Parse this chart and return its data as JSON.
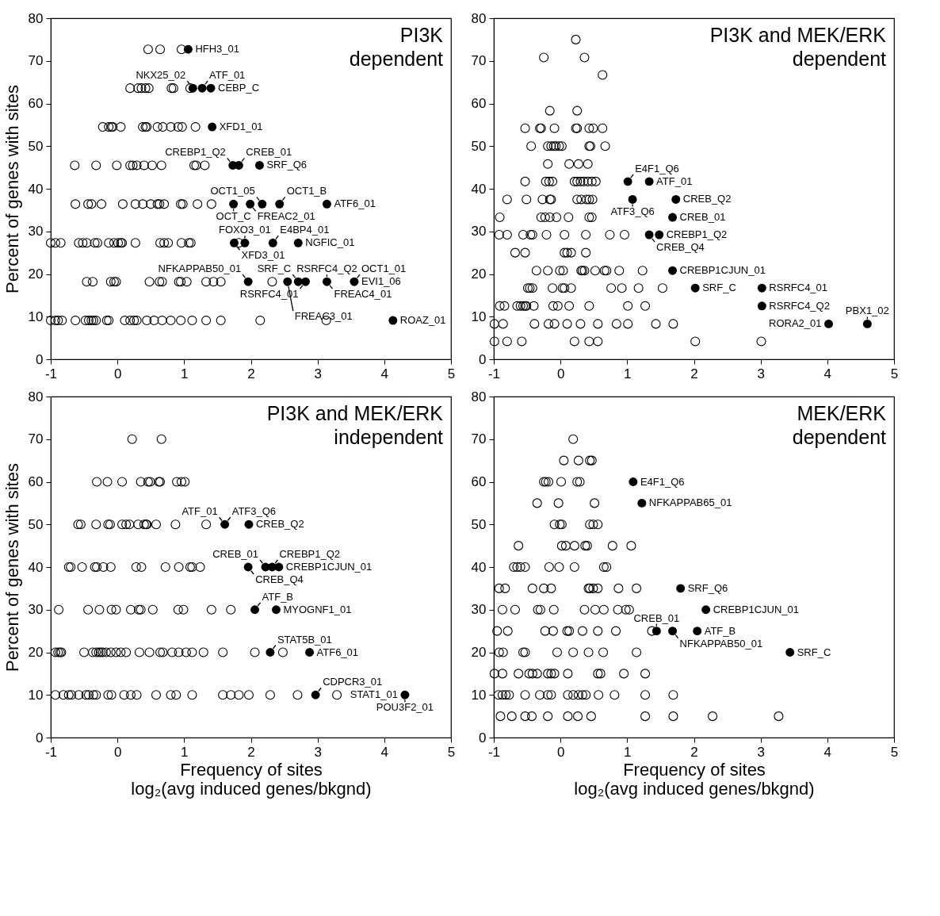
{
  "chart_data": [
    {
      "type": "scatter",
      "title": "PI3K\ndependent",
      "ylabel": "Percent of genes with sites",
      "xlim": [
        -1,
        5
      ],
      "ylim": [
        0,
        80
      ],
      "xticks": [
        -1,
        0,
        1,
        2,
        3,
        4,
        5
      ],
      "yticks": [
        0,
        10,
        20,
        30,
        40,
        50,
        60,
        70,
        80
      ],
      "marker": "circle",
      "series": [
        {
          "color": "#000000",
          "x": [
            0.46,
            0.64,
            0.96,
            0.19,
            0.31,
            0.36,
            0.42,
            0.47,
            0.81,
            0.84,
            1.09,
            -0.22,
            -0.13,
            -0.09,
            -0.07,
            0.05,
            0.38,
            0.42,
            0.44,
            0.6,
            0.68,
            0.8,
            0.91,
            0.97,
            1.17,
            -0.64,
            -0.32,
            -0.01,
            0.19,
            0.23,
            0.29,
            0.4,
            0.52,
            0.66,
            1.15,
            1.18,
            1.31,
            -0.63,
            -0.44,
            -0.39,
            -0.24,
            0.08,
            0.27,
            0.38,
            0.5,
            0.6,
            0.63,
            0.7,
            0.95,
            0.98,
            1.2,
            1.41,
            -1,
            -0.93,
            -0.85,
            -0.58,
            -0.52,
            -0.46,
            -0.34,
            -0.3,
            -0.13,
            -0.05,
            0.01,
            0.05,
            0.07,
            0.27,
            0.64,
            0.7,
            0.76,
            0.96,
            1.07,
            1.1,
            1.82,
            -0.46,
            -0.37,
            -0.1,
            -0.05,
            -0.02,
            0.48,
            0.63,
            0.67,
            0.92,
            0.95,
            1.04,
            1.33,
            1.44,
            1.55,
            2.32,
            -1,
            -0.93,
            -0.89,
            -0.83,
            -0.63,
            -0.48,
            -0.43,
            -0.39,
            -0.36,
            -0.32,
            -0.16,
            -0.13,
            0.11,
            0.19,
            0.25,
            0.29,
            0.44,
            0.55,
            0.67,
            0.8,
            0.95,
            1.12,
            1.33,
            1.55,
            2.14,
            3.13
          ],
          "values": [
            72.7,
            72.7,
            72.7,
            63.6,
            63.6,
            63.6,
            63.6,
            63.6,
            63.6,
            63.6,
            63.6,
            54.5,
            54.5,
            54.5,
            54.5,
            54.5,
            54.5,
            54.5,
            54.5,
            54.5,
            54.5,
            54.5,
            54.5,
            54.5,
            54.5,
            45.5,
            45.5,
            45.5,
            45.5,
            45.5,
            45.5,
            45.5,
            45.5,
            45.5,
            45.5,
            45.5,
            45.5,
            36.4,
            36.4,
            36.4,
            36.4,
            36.4,
            36.4,
            36.4,
            36.4,
            36.4,
            36.4,
            36.4,
            36.4,
            36.4,
            36.4,
            36.4,
            27.3,
            27.3,
            27.3,
            27.3,
            27.3,
            27.3,
            27.3,
            27.3,
            27.3,
            27.3,
            27.3,
            27.3,
            27.3,
            27.3,
            27.3,
            27.3,
            27.3,
            27.3,
            27.3,
            27.3,
            27.3,
            18.2,
            18.2,
            18.2,
            18.2,
            18.2,
            18.2,
            18.2,
            18.2,
            18.2,
            18.2,
            18.2,
            18.2,
            18.2,
            18.2,
            18.2,
            9.1,
            9.1,
            9.1,
            9.1,
            9.1,
            9.1,
            9.1,
            9.1,
            9.1,
            9.1,
            9.1,
            9.1,
            9.1,
            9.1,
            9.1,
            9.1,
            9.1,
            9.1,
            9.1,
            9.1,
            9.1,
            9.1,
            9.1,
            9.1,
            9.1,
            9.1
          ]
        },
        {
          "color": "#000000",
          "x": [
            1.06,
            1.13,
            1.27,
            1.4,
            1.42,
            1.73,
            1.82,
            2.13,
            1.74,
            1.99,
            2.17,
            2.43,
            3.14,
            1.75,
            1.91,
            2.33,
            2.71,
            1.96,
            2.55,
            2.71,
            2.82,
            3.14,
            3.55,
            4.13
          ],
          "values": [
            72.7,
            63.6,
            63.6,
            63.6,
            54.5,
            45.5,
            45.5,
            45.5,
            36.4,
            36.4,
            36.4,
            36.4,
            36.4,
            27.3,
            27.3,
            27.3,
            27.3,
            18.2,
            18.2,
            18.2,
            18.2,
            18.2,
            18.2,
            9.1
          ]
        }
      ],
      "annotations": [
        {
          "text": "HFH3_01",
          "x": 1.06,
          "y": 72.7
        },
        {
          "text": "CEBP_C",
          "x": 1.4,
          "y": 63.6
        },
        {
          "text": "ATF_01",
          "x": 1.27,
          "y": 63.6
        },
        {
          "text": "NKX25_02",
          "x": 1.13,
          "y": 63.6
        },
        {
          "text": "XFD1_01",
          "x": 1.42,
          "y": 54.5
        },
        {
          "text": "SRF_Q6",
          "x": 2.13,
          "y": 45.5
        },
        {
          "text": "CREB_01",
          "x": 1.82,
          "y": 45.5
        },
        {
          "text": "CREBP1_Q2",
          "x": 1.73,
          "y": 45.5
        },
        {
          "text": "ATF6_01",
          "x": 3.14,
          "y": 36.4
        },
        {
          "text": "OCT1_B",
          "x": 2.43,
          "y": 36.4
        },
        {
          "text": "OCT1_05",
          "x": 2.17,
          "y": 36.4
        },
        {
          "text": "FREAC2_01",
          "x": 1.99,
          "y": 36.4
        },
        {
          "text": "OCT_C",
          "x": 1.74,
          "y": 36.4
        },
        {
          "text": "NGFIC_01",
          "x": 2.71,
          "y": 27.3
        },
        {
          "text": "E4BP4_01",
          "x": 2.33,
          "y": 27.3
        },
        {
          "text": "FOXO3_01",
          "x": 1.91,
          "y": 27.3
        },
        {
          "text": "XFD3_01",
          "x": 1.75,
          "y": 27.3
        },
        {
          "text": "EVI1_06",
          "x": 3.55,
          "y": 18.2
        },
        {
          "text": "OCT1_01",
          "x": 3.55,
          "y": 18.2
        },
        {
          "text": "RSRFC4_Q2",
          "x": 3.14,
          "y": 18.2
        },
        {
          "text": "FREAC4_01",
          "x": 3.14,
          "y": 18.2
        },
        {
          "text": "RSRFC4_01",
          "x": 2.82,
          "y": 18.2
        },
        {
          "text": "SRF_C",
          "x": 2.71,
          "y": 18.2
        },
        {
          "text": "FREAC3_01",
          "x": 2.55,
          "y": 18.2
        },
        {
          "text": "NFKAPPAB50_01",
          "x": 1.96,
          "y": 18.2
        },
        {
          "text": "ROAZ_01",
          "x": 4.13,
          "y": 9.1
        }
      ]
    },
    {
      "type": "scatter",
      "title": "PI3K and MEK/ERK\ndependent",
      "xlim": [
        -1,
        5
      ],
      "ylim": [
        0,
        80
      ],
      "xticks": [
        -1,
        0,
        1,
        2,
        3,
        4,
        5
      ],
      "yticks": [
        0,
        10,
        20,
        30,
        40,
        50,
        60,
        70,
        80
      ],
      "marker": "circle",
      "series": [
        {
          "color": "#000000",
          "x": [
            0.23,
            -0.25,
            0.36,
            0.63,
            -0.16,
            0.25,
            -0.53,
            -0.31,
            -0.29,
            -0.09,
            0.23,
            0.25,
            0.43,
            0.49,
            0.63,
            -0.44,
            -0.19,
            -0.14,
            -0.1,
            -0.07,
            -0.02,
            0.02,
            0.43,
            0.45,
            0.67,
            -0.19,
            0.13,
            0.27,
            0.41,
            -0.53,
            -0.22,
            -0.17,
            -0.12,
            0.21,
            0.25,
            0.3,
            0.35,
            0.41,
            0.47,
            0.53,
            -0.8,
            -0.51,
            -0.27,
            -0.16,
            -0.14,
            0.25,
            0.31,
            0.39,
            0.43,
            0.48,
            -0.91,
            -0.29,
            -0.23,
            -0.16,
            -0.06,
            0.12,
            0.43,
            0.47,
            -0.92,
            -0.8,
            -0.56,
            -0.45,
            -0.42,
            -0.21,
            0.06,
            0.38,
            0.74,
            0.96,
            -0.68,
            -0.53,
            0.06,
            0.1,
            0.16,
            0.38,
            -0.36,
            -0.19,
            -0.01,
            0.04,
            0.31,
            0.33,
            0.36,
            0.52,
            0.66,
            0.69,
            0.88,
            1.23,
            -0.49,
            -0.46,
            -0.42,
            -0.12,
            0.03,
            0.06,
            0.16,
            0.76,
            0.92,
            1.17,
            1.53,
            -0.91,
            -0.84,
            -0.65,
            -0.6,
            -0.56,
            -0.53,
            -0.51,
            -0.4,
            -0.11,
            -0.04,
            0.13,
            0.43,
            1.01,
            1.27,
            -0.99,
            -0.86,
            -0.39,
            -0.18,
            -0.09,
            0.1,
            0.3,
            0.56,
            0.84,
            1.01,
            1.43,
            1.69,
            -0.99,
            -0.8,
            -0.58,
            0.21,
            0.43,
            0.56,
            2.02,
            3.01
          ],
          "values": [
            75,
            70.8,
            70.8,
            66.7,
            58.3,
            58.3,
            54.2,
            54.2,
            54.2,
            54.2,
            54.2,
            54.2,
            54.2,
            54.2,
            54.2,
            50,
            50,
            50,
            50,
            50,
            50,
            50,
            50,
            50,
            50,
            45.8,
            45.8,
            45.8,
            45.8,
            41.7,
            41.7,
            41.7,
            41.7,
            41.7,
            41.7,
            41.7,
            41.7,
            41.7,
            41.7,
            41.7,
            37.5,
            37.5,
            37.5,
            37.5,
            37.5,
            37.5,
            37.5,
            37.5,
            37.5,
            37.5,
            33.3,
            33.3,
            33.3,
            33.3,
            33.3,
            33.3,
            33.3,
            33.3,
            29.2,
            29.2,
            29.2,
            29.2,
            29.2,
            29.2,
            29.2,
            29.2,
            29.2,
            29.2,
            25,
            25,
            25,
            25,
            25,
            25,
            20.8,
            20.8,
            20.8,
            20.8,
            20.8,
            20.8,
            20.8,
            20.8,
            20.8,
            20.8,
            20.8,
            20.8,
            16.7,
            16.7,
            16.7,
            16.7,
            16.7,
            16.7,
            16.7,
            16.7,
            16.7,
            16.7,
            16.7,
            12.5,
            12.5,
            12.5,
            12.5,
            12.5,
            12.5,
            12.5,
            12.5,
            12.5,
            12.5,
            12.5,
            12.5,
            12.5,
            12.5,
            8.3,
            8.3,
            8.3,
            8.3,
            8.3,
            8.3,
            8.3,
            8.3,
            8.3,
            8.3,
            8.3,
            8.3,
            4.2,
            4.2,
            4.2,
            4.2,
            4.2,
            4.2,
            4.2,
            4.2
          ]
        },
        {
          "color": "#000000",
          "x": [
            1.01,
            1.33,
            1.08,
            1.73,
            1.68,
            1.33,
            1.48,
            1.68,
            2.02,
            3.02,
            3.02,
            4.02,
            4.6
          ],
          "values": [
            41.7,
            41.7,
            37.5,
            37.5,
            33.3,
            29.2,
            29.2,
            20.8,
            16.7,
            16.7,
            12.5,
            8.3,
            8.3
          ]
        }
      ],
      "annotations": [
        {
          "text": "ATF_01",
          "x": 1.33,
          "y": 41.7
        },
        {
          "text": "E4F1_Q6",
          "x": 1.01,
          "y": 41.7
        },
        {
          "text": "CREB_Q2",
          "x": 1.73,
          "y": 37.5
        },
        {
          "text": "ATF3_Q6",
          "x": 1.08,
          "y": 37.5
        },
        {
          "text": "CREB_01",
          "x": 1.68,
          "y": 33.3
        },
        {
          "text": "CREBP1_Q2",
          "x": 1.48,
          "y": 29.2
        },
        {
          "text": "CREB_Q4",
          "x": 1.33,
          "y": 29.2
        },
        {
          "text": "CREBP1CJUN_01",
          "x": 1.68,
          "y": 20.8
        },
        {
          "text": "SRF_C",
          "x": 2.02,
          "y": 16.7
        },
        {
          "text": "RSRFC4_01",
          "x": 3.02,
          "y": 16.7
        },
        {
          "text": "RSRFC4_Q2",
          "x": 3.02,
          "y": 12.5
        },
        {
          "text": "PBX1_02",
          "x": 4.6,
          "y": 8.3
        },
        {
          "text": "RORA2_01",
          "x": 4.02,
          "y": 8.3
        }
      ]
    },
    {
      "type": "scatter",
      "title": "PI3K and MEK/ERK\nindependent",
      "xlabel": "Frequency of sites\nlog₂(avg induced genes/bkgnd)",
      "ylabel": "Percent of genes with sites",
      "xlim": [
        -1,
        5
      ],
      "ylim": [
        0,
        80
      ],
      "xticks": [
        -1,
        0,
        1,
        2,
        3,
        4,
        5
      ],
      "yticks": [
        0,
        10,
        20,
        30,
        40,
        50,
        60,
        70,
        80
      ],
      "marker": "circle",
      "series": [
        {
          "color": "#000000",
          "x": [
            0.22,
            0.66,
            -0.31,
            -0.15,
            0.07,
            0.35,
            0.46,
            0.49,
            0.62,
            0.64,
            0.89,
            0.96,
            1.01,
            -0.59,
            -0.55,
            -0.32,
            -0.14,
            -0.11,
            0.07,
            0.13,
            0.18,
            0.31,
            0.4,
            0.43,
            0.44,
            0.58,
            0.87,
            1.33,
            -0.73,
            -0.7,
            -0.53,
            -0.34,
            -0.31,
            -0.21,
            -0.1,
            0.28,
            0.36,
            0.72,
            0.92,
            1.09,
            1.12,
            1.24,
            -0.88,
            -0.44,
            -0.27,
            -0.09,
            -0.02,
            0.2,
            0.32,
            0.35,
            0.53,
            0.91,
            0.99,
            1.41,
            1.7,
            -0.93,
            -0.89,
            -0.86,
            -0.84,
            -0.5,
            -0.37,
            -0.32,
            -0.28,
            -0.25,
            -0.22,
            -0.17,
            -0.1,
            -0.02,
            0.05,
            0.13,
            0.33,
            0.48,
            0.64,
            0.68,
            0.82,
            0.92,
            1.03,
            1.12,
            1.29,
            1.58,
            2.06,
            2.48,
            -0.93,
            -0.81,
            -0.73,
            -0.69,
            -0.58,
            -0.47,
            -0.43,
            -0.36,
            -0.32,
            -0.14,
            -0.09,
            0.1,
            0.2,
            0.29,
            0.58,
            0.8,
            0.88,
            1.12,
            1.58,
            1.7,
            1.82,
            1.97,
            2.29,
            2.7,
            3.29
          ],
          "values": [
            70,
            70,
            60,
            60,
            60,
            60,
            60,
            60,
            60,
            60,
            60,
            60,
            60,
            50,
            50,
            50,
            50,
            50,
            50,
            50,
            50,
            50,
            50,
            50,
            50,
            50,
            50,
            50,
            40,
            40,
            40,
            40,
            40,
            40,
            40,
            40,
            40,
            40,
            40,
            40,
            40,
            40,
            30,
            30,
            30,
            30,
            30,
            30,
            30,
            30,
            30,
            30,
            30,
            30,
            30,
            20,
            20,
            20,
            20,
            20,
            20,
            20,
            20,
            20,
            20,
            20,
            20,
            20,
            20,
            20,
            20,
            20,
            20,
            20,
            20,
            20,
            20,
            20,
            20,
            20,
            20,
            20,
            10,
            10,
            10,
            10,
            10,
            10,
            10,
            10,
            10,
            10,
            10,
            10,
            10,
            10,
            10,
            10,
            10,
            10,
            10,
            10,
            10,
            10,
            10,
            10,
            10
          ]
        },
        {
          "color": "#000000",
          "x": [
            1.61,
            1.97,
            1.96,
            2.22,
            2.32,
            2.42,
            2.06,
            2.38,
            2.29,
            2.88,
            2.97,
            4.31
          ],
          "values": [
            50,
            50,
            40,
            40,
            40,
            40,
            30,
            30,
            20,
            20,
            10,
            10
          ]
        }
      ],
      "annotations": [
        {
          "text": "CREB_Q2",
          "x": 1.97,
          "y": 50
        },
        {
          "text": "ATF3_Q6",
          "x": 1.61,
          "y": 50
        },
        {
          "text": "ATF_01",
          "x": 1.61,
          "y": 50
        },
        {
          "text": "CREBP1CJUN_01",
          "x": 2.42,
          "y": 40
        },
        {
          "text": "CREBP1_Q2",
          "x": 2.32,
          "y": 40
        },
        {
          "text": "CREB_01",
          "x": 2.22,
          "y": 40
        },
        {
          "text": "CREB_Q4",
          "x": 1.96,
          "y": 40
        },
        {
          "text": "MYOGNF1_01",
          "x": 2.38,
          "y": 30
        },
        {
          "text": "ATF_B",
          "x": 2.06,
          "y": 30
        },
        {
          "text": "ATF6_01",
          "x": 2.88,
          "y": 20
        },
        {
          "text": "STAT5B_01",
          "x": 2.29,
          "y": 20
        },
        {
          "text": "CDPCR3_01",
          "x": 2.97,
          "y": 10
        },
        {
          "text": "POU3F2_01",
          "x": 4.31,
          "y": 10
        },
        {
          "text": "STAT1_01",
          "x": 4.31,
          "y": 10
        }
      ]
    },
    {
      "type": "scatter",
      "title": "MEK/ERK\ndependent",
      "xlabel": "Frequency of sites\nlog₂(avg induced genes/bkgnd)",
      "xlim": [
        -1,
        5
      ],
      "ylim": [
        0,
        80
      ],
      "xticks": [
        -1,
        0,
        1,
        2,
        3,
        4,
        5
      ],
      "yticks": [
        0,
        10,
        20,
        30,
        40,
        50,
        60,
        70,
        80
      ],
      "marker": "circle",
      "series": [
        {
          "color": "#000000",
          "x": [
            0.19,
            0.05,
            0.27,
            0.44,
            0.47,
            -0.25,
            -0.22,
            -0.18,
            0.01,
            0.25,
            0.29,
            -0.35,
            -0.03,
            0.51,
            -0.09,
            -0.01,
            0.02,
            0.44,
            0.49,
            0.56,
            -0.63,
            0.02,
            0.08,
            0.21,
            0.37,
            0.4,
            0.78,
            1.06,
            -0.7,
            -0.65,
            -0.6,
            -0.53,
            -0.17,
            -0.02,
            0.21,
            0.65,
            0.69,
            -0.92,
            -0.83,
            -0.42,
            -0.25,
            -0.14,
            0.42,
            0.44,
            0.49,
            0.56,
            0.87,
            1.14,
            -0.87,
            -0.68,
            -0.34,
            -0.3,
            -0.1,
            0.36,
            0.52,
            0.65,
            0.86,
            0.98,
            1.03,
            -0.95,
            -0.79,
            -0.23,
            -0.11,
            0.1,
            0.13,
            0.33,
            0.56,
            0.83,
            1.37,
            -0.92,
            -0.86,
            -0.56,
            -0.53,
            -0.05,
            0.19,
            0.42,
            0.64,
            1.14,
            -0.99,
            -0.87,
            -0.63,
            -0.47,
            -0.42,
            -0.35,
            -0.19,
            -0.14,
            -0.09,
            0.11,
            0.56,
            0.6,
            0.95,
            1.27,
            -0.93,
            -0.87,
            -0.82,
            -0.77,
            -0.53,
            -0.31,
            -0.19,
            -0.14,
            0.11,
            0.19,
            0.27,
            0.33,
            0.38,
            0.57,
            0.81,
            1.27,
            1.69,
            -0.9,
            -0.73,
            -0.53,
            -0.43,
            -0.19,
            0.11,
            0.26,
            0.46,
            1.27,
            1.69,
            2.28,
            3.27
          ],
          "values": [
            70,
            65,
            65,
            65,
            65,
            60,
            60,
            60,
            60,
            60,
            60,
            55,
            55,
            55,
            50,
            50,
            50,
            50,
            50,
            50,
            45,
            45,
            45,
            45,
            45,
            45,
            45,
            45,
            40,
            40,
            40,
            40,
            40,
            40,
            40,
            40,
            40,
            35,
            35,
            35,
            35,
            35,
            35,
            35,
            35,
            35,
            35,
            35,
            30,
            30,
            30,
            30,
            30,
            30,
            30,
            30,
            30,
            30,
            30,
            25,
            25,
            25,
            25,
            25,
            25,
            25,
            25,
            25,
            25,
            20,
            20,
            20,
            20,
            20,
            20,
            20,
            20,
            20,
            15,
            15,
            15,
            15,
            15,
            15,
            15,
            15,
            15,
            15,
            15,
            15,
            15,
            15,
            10,
            10,
            10,
            10,
            10,
            10,
            10,
            10,
            10,
            10,
            10,
            10,
            10,
            10,
            10,
            10,
            10,
            5,
            5,
            5,
            5,
            5,
            5,
            5,
            5,
            5,
            5,
            5,
            5
          ]
        },
        {
          "color": "#000000",
          "x": [
            1.09,
            1.22,
            1.8,
            2.18,
            1.44,
            1.68,
            2.05,
            3.44
          ],
          "values": [
            60,
            55,
            35,
            30,
            25,
            25,
            25,
            20
          ]
        }
      ],
      "annotations": [
        {
          "text": "E4F1_Q6",
          "x": 1.09,
          "y": 60
        },
        {
          "text": "NFKAPPAB65_01",
          "x": 1.22,
          "y": 55
        },
        {
          "text": "SRF_Q6",
          "x": 1.8,
          "y": 35
        },
        {
          "text": "CREBP1CJUN_01",
          "x": 2.18,
          "y": 30
        },
        {
          "text": "ATF_B",
          "x": 2.05,
          "y": 25
        },
        {
          "text": "NFKAPPAB50_01",
          "x": 1.68,
          "y": 25
        },
        {
          "text": "CREB_01",
          "x": 1.44,
          "y": 25
        },
        {
          "text": "SRF_C",
          "x": 3.44,
          "y": 20
        }
      ]
    }
  ]
}
